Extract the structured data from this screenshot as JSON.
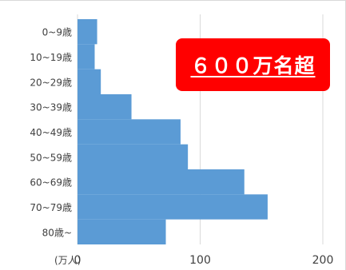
{
  "chart_data": {
    "type": "bar",
    "orientation": "horizontal",
    "categories": [
      "0~9歳",
      "10~19歳",
      "20~29歳",
      "30~39歳",
      "40~49歳",
      "50~59歳",
      "60~69歳",
      "70~79歳",
      "80歳~"
    ],
    "values": [
      16,
      14,
      19,
      44,
      84,
      90,
      136,
      155,
      72
    ],
    "xlim": [
      0,
      200
    ],
    "xticks": [
      "0",
      "100",
      "200"
    ],
    "xticks_values": [
      0,
      100,
      200
    ],
    "unit_label": "(万人)",
    "grid": true,
    "bar_color": "#5b9bd5"
  },
  "callout": {
    "text": "６００万名超",
    "color": "#ff0000"
  }
}
